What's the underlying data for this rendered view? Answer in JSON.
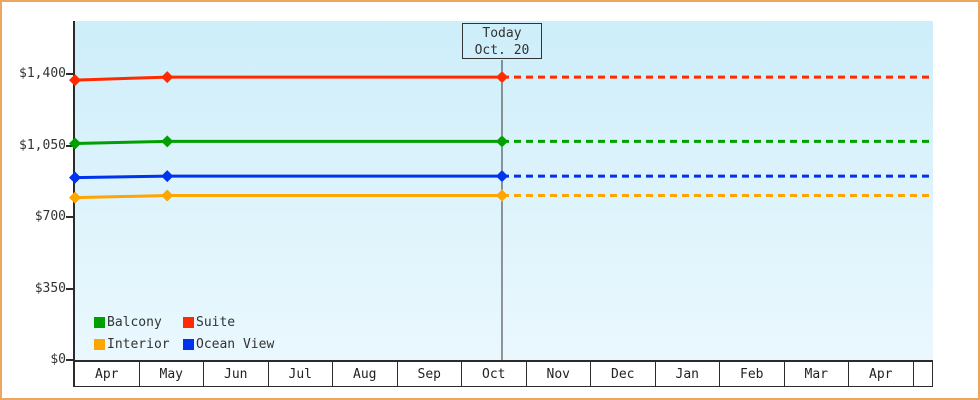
{
  "chart_data": {
    "type": "line",
    "title": "",
    "categories": [
      "Apr",
      "May",
      "Jun",
      "Jul",
      "Aug",
      "Sep",
      "Oct",
      "Nov",
      "Dec",
      "Jan",
      "Feb",
      "Mar",
      "Apr"
    ],
    "y_axis": {
      "range": [
        0,
        1400
      ],
      "ticks": [
        {
          "value": 0,
          "label": "$0"
        },
        {
          "value": 350,
          "label": "$350"
        },
        {
          "value": 700,
          "label": "$700"
        },
        {
          "value": 1050,
          "label": "$1,050"
        },
        {
          "value": 1400,
          "label": "$1,400"
        }
      ]
    },
    "today_annotation": {
      "line1": "Today",
      "line2": "Oct. 20"
    },
    "today_m": 6.62,
    "x_end_m": 13.29,
    "series": [
      {
        "name": "Balcony",
        "color": "#00A000",
        "points": [
          {
            "m": 0,
            "value": 1060
          },
          {
            "m": 1.43,
            "value": 1070
          },
          {
            "m": 6.62,
            "value": 1070
          }
        ],
        "forecast_value": 1070
      },
      {
        "name": "Suite",
        "color": "#FF2A00",
        "points": [
          {
            "m": 0,
            "value": 1370
          },
          {
            "m": 1.43,
            "value": 1385
          },
          {
            "m": 6.62,
            "value": 1385
          }
        ],
        "forecast_value": 1385
      },
      {
        "name": "Interior",
        "color": "#FFA500",
        "points": [
          {
            "m": 0,
            "value": 795
          },
          {
            "m": 1.43,
            "value": 805
          },
          {
            "m": 6.62,
            "value": 805
          }
        ],
        "forecast_value": 805
      },
      {
        "name": "Ocean View",
        "color": "#0033EE",
        "points": [
          {
            "m": 0,
            "value": 893
          },
          {
            "m": 1.43,
            "value": 900
          },
          {
            "m": 6.62,
            "value": 900
          }
        ],
        "forecast_value": 900
      }
    ],
    "legend_position": "bottom-left",
    "line_style": {
      "history": "solid",
      "forecast": "dashed"
    }
  },
  "colors": {
    "page_border": "#ECA660",
    "axis": "#2b2b2b",
    "text": "#333333",
    "plot_bg_top": "#CDEEFA",
    "plot_bg_bottom": "#EAF8FE"
  }
}
